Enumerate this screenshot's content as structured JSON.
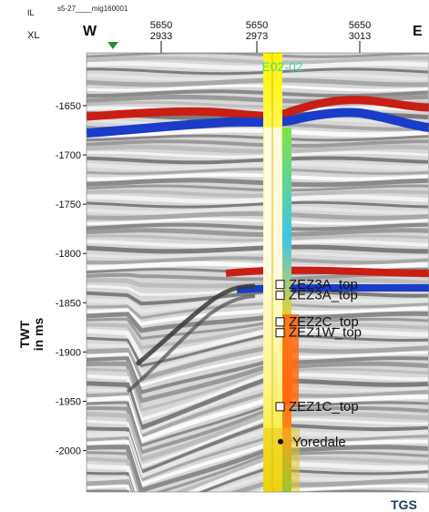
{
  "header": {
    "line_name": "s5-27____mig160001",
    "il_label": "IL",
    "xl_label": "XL",
    "west_label": "W",
    "east_label": "E",
    "traces": [
      {
        "il": "5650",
        "xl": "2933"
      },
      {
        "il": "5650",
        "xl": "2973"
      },
      {
        "il": "5650",
        "xl": "3013"
      }
    ]
  },
  "well": {
    "name": "E02-02"
  },
  "axis": {
    "label_line1": "TWT",
    "label_line2": "in ms",
    "ticks": [
      "-1650",
      "-1700",
      "-1750",
      "-1800",
      "-1850",
      "-1900",
      "-1950",
      "-2000"
    ]
  },
  "horizons": [
    {
      "name": "ZEZ3A_top",
      "twt": -1831
    },
    {
      "name": "ZEZ3A_top",
      "twt": -1842
    },
    {
      "name": "ZEZ2C_top",
      "twt": -1869
    },
    {
      "name": "ZEZ1W_top",
      "twt": -1880
    },
    {
      "name": "ZEZ1C_top",
      "twt": -1955
    }
  ],
  "formation_marker": {
    "name": "Yoredale",
    "twt": -1991
  },
  "footer": {
    "brand": "TGS"
  },
  "colors": {
    "text": "#111111",
    "well_label": "#3ddc97",
    "brand": "#1f3b5c",
    "positive_reflector": "#c81e14",
    "negative_reflector": "#1a3cc8",
    "well_yellow": "#fff200",
    "well_pale": "#fffad0"
  }
}
